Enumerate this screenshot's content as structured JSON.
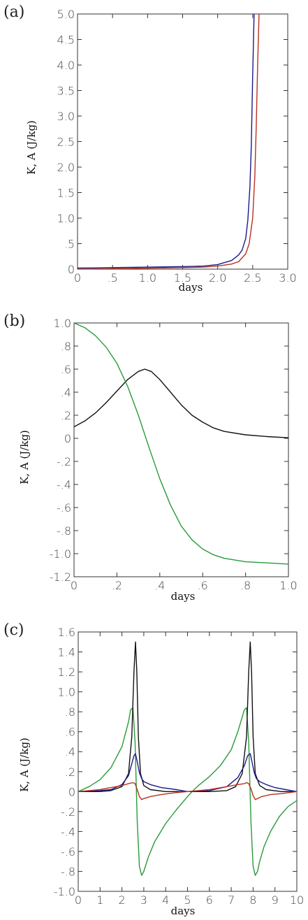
{
  "chart_data": [
    {
      "type": "line",
      "panel_label": "(a)",
      "xlabel": "days",
      "ylabel": "K, A  (J/kg)",
      "xlim": [
        0,
        3.0
      ],
      "ylim": [
        0,
        5.0
      ],
      "x_ticks": [
        0,
        0.5,
        1.0,
        1.5,
        2.0,
        2.5,
        3.0
      ],
      "x_tick_labels": [
        "0",
        ".5",
        "1.0",
        "1.5",
        "2.0",
        "2.5",
        "3.0"
      ],
      "y_ticks": [
        0,
        0.5,
        1.0,
        1.5,
        2.0,
        2.5,
        3.0,
        3.5,
        4.0,
        4.5,
        5.0
      ],
      "y_tick_labels": [
        "0",
        ".5",
        "1.0",
        "1.5",
        "2.0",
        "2.5",
        "3.0",
        "3.5",
        "4.0",
        "4.5",
        "5.0"
      ],
      "series": [
        {
          "color": "#1a1a8c",
          "x": [
            0,
            0.5,
            1.0,
            1.5,
            1.8,
            2.0,
            2.2,
            2.3,
            2.35,
            2.4,
            2.43,
            2.46,
            2.48,
            2.5,
            2.52
          ],
          "y": [
            0.02,
            0.03,
            0.04,
            0.05,
            0.06,
            0.09,
            0.17,
            0.28,
            0.38,
            0.6,
            0.95,
            1.6,
            2.4,
            3.8,
            5.0
          ]
        },
        {
          "color": "#b8321e",
          "x": [
            0,
            0.5,
            1.0,
            1.5,
            1.8,
            2.0,
            2.2,
            2.3,
            2.4,
            2.45,
            2.5,
            2.53,
            2.55,
            2.57,
            2.59
          ],
          "y": [
            0.0,
            0.01,
            0.02,
            0.03,
            0.04,
            0.06,
            0.1,
            0.15,
            0.3,
            0.5,
            1.0,
            1.8,
            2.8,
            4.0,
            5.0
          ]
        }
      ]
    },
    {
      "type": "line",
      "panel_label": "(b)",
      "xlabel": "days",
      "ylabel": "K, A  (J/kg)",
      "xlim": [
        0,
        1.0
      ],
      "ylim": [
        -1.2,
        1.0
      ],
      "x_ticks": [
        0,
        0.2,
        0.4,
        0.6,
        0.8,
        1.0
      ],
      "x_tick_labels": [
        "0",
        ".2",
        ".4",
        ".6",
        ".8",
        "1.0"
      ],
      "y_ticks": [
        -1.2,
        -1.0,
        -0.8,
        -0.6,
        -0.4,
        -0.2,
        0,
        0.2,
        0.4,
        0.6,
        0.8,
        1.0
      ],
      "y_tick_labels": [
        "-1.2",
        "-1.0",
        "-.8",
        "-.6",
        "-.4",
        "-.2",
        "0",
        ".2",
        ".4",
        ".6",
        ".8",
        "1.0"
      ],
      "series": [
        {
          "color": "#111111",
          "x": [
            0,
            0.05,
            0.1,
            0.15,
            0.2,
            0.25,
            0.3,
            0.33,
            0.36,
            0.4,
            0.45,
            0.5,
            0.55,
            0.6,
            0.65,
            0.7,
            0.8,
            0.9,
            1.0
          ],
          "y": [
            0.1,
            0.15,
            0.22,
            0.31,
            0.41,
            0.51,
            0.58,
            0.6,
            0.58,
            0.51,
            0.4,
            0.29,
            0.2,
            0.14,
            0.09,
            0.06,
            0.03,
            0.015,
            0.005
          ]
        },
        {
          "color": "#2a9a3a",
          "x": [
            0,
            0.05,
            0.1,
            0.15,
            0.2,
            0.25,
            0.3,
            0.35,
            0.4,
            0.45,
            0.5,
            0.55,
            0.6,
            0.65,
            0.7,
            0.8,
            0.9,
            1.0
          ],
          "y": [
            1.0,
            0.96,
            0.89,
            0.79,
            0.65,
            0.45,
            0.2,
            -0.08,
            -0.35,
            -0.58,
            -0.76,
            -0.88,
            -0.96,
            -1.01,
            -1.04,
            -1.07,
            -1.08,
            -1.09
          ]
        }
      ]
    },
    {
      "type": "line",
      "panel_label": "(c)",
      "xlabel": "days",
      "ylabel": "K, A  (J/kg)",
      "xlim": [
        0,
        10
      ],
      "ylim": [
        -1.0,
        1.6
      ],
      "x_ticks": [
        0,
        1,
        2,
        3,
        4,
        5,
        6,
        7,
        8,
        9,
        10
      ],
      "x_tick_labels": [
        "0",
        "1",
        "2",
        "3",
        "4",
        "5",
        "6",
        "7",
        "8",
        "9",
        "10"
      ],
      "y_ticks": [
        -1.0,
        -0.8,
        -0.6,
        -0.4,
        -0.2,
        0,
        0.2,
        0.4,
        0.6,
        0.8,
        1.0,
        1.2,
        1.4,
        1.6
      ],
      "y_tick_labels": [
        "-1.0",
        "-.8",
        "-.6",
        "-.4",
        "-.2",
        "0",
        ".2",
        ".4",
        ".6",
        ".8",
        "1.0",
        "1.2",
        "1.4",
        "1.6"
      ],
      "series": [
        {
          "color": "#2a9a3a",
          "x": [
            0,
            0.5,
            1.0,
            1.5,
            2.0,
            2.3,
            2.4,
            2.5,
            2.6,
            2.7,
            2.8,
            2.9,
            3.0,
            3.2,
            3.5,
            4.0,
            4.5,
            5.0,
            5.3,
            5.5,
            6.0,
            6.5,
            7.0,
            7.3,
            7.6,
            7.7,
            7.8,
            7.9,
            8.0,
            8.1,
            8.2,
            8.3,
            8.5,
            8.8,
            9.2,
            9.6,
            10.0
          ],
          "y": [
            0.0,
            0.05,
            0.12,
            0.24,
            0.45,
            0.7,
            0.82,
            0.84,
            0.5,
            -0.3,
            -0.75,
            -0.84,
            -0.8,
            -0.66,
            -0.5,
            -0.32,
            -0.18,
            -0.05,
            0.02,
            0.06,
            0.15,
            0.26,
            0.42,
            0.6,
            0.82,
            0.84,
            0.5,
            -0.3,
            -0.75,
            -0.84,
            -0.8,
            -0.7,
            -0.55,
            -0.4,
            -0.25,
            -0.15,
            -0.09
          ]
        },
        {
          "color": "#111111",
          "x": [
            0,
            1.0,
            1.5,
            2.0,
            2.3,
            2.45,
            2.55,
            2.62,
            2.68,
            2.75,
            2.85,
            3.0,
            3.3,
            4.0,
            5.0,
            6.0,
            6.8,
            7.2,
            7.5,
            7.7,
            7.8,
            7.87,
            7.93,
            8.0,
            8.1,
            8.3,
            8.6,
            9.3,
            10.0
          ],
          "y": [
            0.0,
            0.0,
            0.01,
            0.05,
            0.18,
            0.55,
            1.2,
            1.5,
            1.2,
            0.55,
            0.18,
            0.06,
            0.02,
            0.0,
            0.0,
            0.0,
            0.01,
            0.05,
            0.18,
            0.55,
            1.2,
            1.5,
            1.2,
            0.55,
            0.18,
            0.06,
            0.02,
            0.0,
            0.0
          ]
        },
        {
          "color": "#1a1a8c",
          "x": [
            0,
            1.0,
            1.5,
            2.0,
            2.3,
            2.45,
            2.55,
            2.62,
            2.7,
            2.8,
            2.9,
            3.0,
            3.3,
            3.8,
            4.5,
            5.0,
            6.0,
            6.8,
            7.3,
            7.6,
            7.75,
            7.87,
            7.95,
            8.05,
            8.15,
            8.3,
            8.6,
            9.0,
            9.5,
            10.0
          ],
          "y": [
            0.0,
            0.01,
            0.02,
            0.07,
            0.16,
            0.28,
            0.36,
            0.38,
            0.3,
            0.19,
            0.13,
            0.1,
            0.07,
            0.04,
            0.02,
            0.0,
            0.01,
            0.05,
            0.14,
            0.26,
            0.36,
            0.38,
            0.3,
            0.19,
            0.13,
            0.1,
            0.07,
            0.04,
            0.02,
            0.0
          ]
        },
        {
          "color": "#b8321e",
          "x": [
            0,
            1.0,
            1.5,
            2.0,
            2.3,
            2.5,
            2.6,
            2.7,
            2.8,
            2.9,
            3.0,
            3.3,
            3.8,
            4.5,
            5.0,
            6.0,
            6.8,
            7.3,
            7.6,
            7.7,
            7.8,
            7.9,
            8.0,
            8.1,
            8.2,
            8.4,
            8.8,
            9.3,
            10.0
          ],
          "y": [
            0.0,
            0.02,
            0.04,
            0.06,
            0.08,
            0.09,
            0.08,
            0.02,
            -0.05,
            -0.08,
            -0.07,
            -0.05,
            -0.03,
            -0.01,
            0.0,
            0.02,
            0.05,
            0.07,
            0.08,
            0.09,
            0.08,
            0.03,
            -0.04,
            -0.08,
            -0.07,
            -0.05,
            -0.03,
            -0.02,
            0.0
          ]
        }
      ]
    }
  ]
}
